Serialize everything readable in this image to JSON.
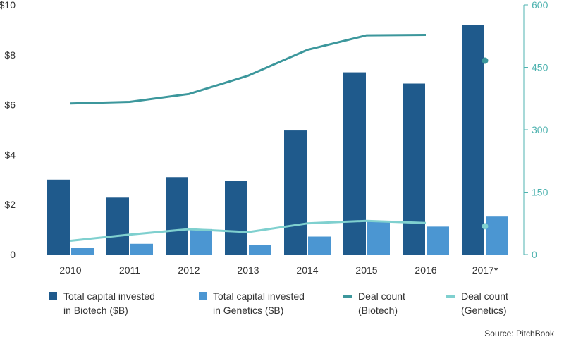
{
  "chart_data": {
    "type": "bar",
    "categories": [
      "2010",
      "2011",
      "2012",
      "2013",
      "2014",
      "2015",
      "2016",
      "2017*"
    ],
    "series": [
      {
        "name": "Total capital invested in Biotech ($B)",
        "kind": "bar",
        "axis": "left",
        "color": "#1f5a8c",
        "values": [
          3.0,
          2.28,
          3.1,
          2.95,
          4.97,
          7.3,
          6.85,
          9.2
        ]
      },
      {
        "name": "Total capital invested in Genetics ($B)",
        "kind": "bar",
        "axis": "left",
        "color": "#4b96d2",
        "values": [
          0.28,
          0.43,
          1.02,
          0.38,
          0.72,
          1.33,
          1.12,
          1.52
        ]
      },
      {
        "name": "Deal count (Biotech)",
        "kind": "line",
        "axis": "right",
        "color": "#3c979c",
        "values": [
          363,
          367,
          386,
          430,
          492,
          527,
          528,
          466
        ]
      },
      {
        "name": "Deal count (Genetics)",
        "kind": "line",
        "axis": "right",
        "color": "#7fd0cf",
        "values": [
          33,
          48,
          61,
          54,
          75,
          81,
          76,
          68
        ]
      }
    ],
    "left_axis": {
      "ylim": [
        0,
        10
      ],
      "ticks": [
        0,
        2,
        4,
        6,
        8,
        10
      ],
      "tick_labels": [
        "0",
        "$2",
        "$4",
        "$6",
        "$8",
        "$10"
      ]
    },
    "right_axis": {
      "ylim": [
        0,
        600
      ],
      "ticks": [
        0,
        150,
        300,
        450,
        600
      ],
      "tick_labels": [
        "0",
        "150",
        "300",
        "450",
        "600"
      ]
    },
    "legend": {
      "placement": "bottom",
      "items": [
        {
          "line1": "Total capital invested",
          "line2": "in Biotech ($B)",
          "color": "#1f5a8c",
          "kind": "bar"
        },
        {
          "line1": "Total capital invested",
          "line2": "in Genetics ($B)",
          "color": "#4b96d2",
          "kind": "bar"
        },
        {
          "line1": "Deal count",
          "line2": "(Biotech)",
          "color": "#3c979c",
          "kind": "line"
        },
        {
          "line1": "Deal count",
          "line2": "(Genetics)",
          "color": "#7fd0cf",
          "kind": "line"
        }
      ]
    },
    "source": "Source: PitchBook",
    "grid": false,
    "last_point_as_marker": true
  }
}
